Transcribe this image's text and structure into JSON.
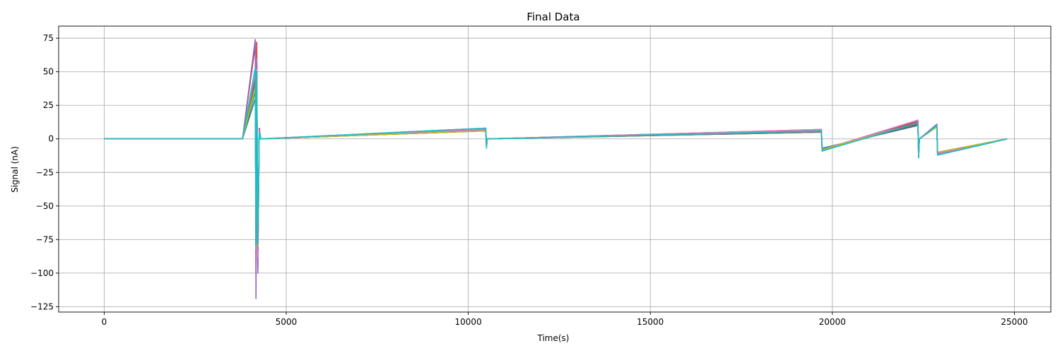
{
  "chart_data": {
    "type": "line",
    "title": "Final Data",
    "xlabel": "Time(s)",
    "ylabel": "Signal (nA)",
    "xlim": [
      -1250,
      26000
    ],
    "ylim": [
      -129,
      84
    ],
    "xticks": [
      0,
      5000,
      10000,
      15000,
      20000,
      25000
    ],
    "yticks": [
      75,
      50,
      25,
      0,
      -25,
      -50,
      -75,
      -100,
      -125
    ],
    "grid": true,
    "legend": "none",
    "colors": [
      "#1f77b4",
      "#ff7f0e",
      "#2ca02c",
      "#d62728",
      "#9467bd",
      "#8c564b",
      "#e377c2",
      "#7f7f7f",
      "#bcbd22",
      "#17becf"
    ],
    "series": [
      {
        "color": "#1f77b4",
        "x": [
          0,
          3800,
          4150,
          4170,
          4190,
          4220,
          4260,
          4300,
          10480,
          10500,
          10520,
          19700,
          19720,
          22350,
          22370,
          22390,
          22870,
          22890,
          24800
        ],
        "y": [
          0,
          0,
          30,
          -60,
          50,
          -70,
          5,
          0,
          6,
          -6,
          0,
          5,
          -7,
          10,
          -12,
          0,
          9,
          -10,
          0
        ]
      },
      {
        "color": "#ff7f0e",
        "x": [
          0,
          3800,
          4150,
          4170,
          4190,
          4220,
          4260,
          4300,
          10480,
          10500,
          10520,
          19700,
          19720,
          22350,
          22370,
          22390,
          22870,
          22890,
          24800
        ],
        "y": [
          0,
          0,
          40,
          -75,
          55,
          -80,
          6,
          0,
          7,
          -5,
          0,
          6,
          -8,
          11,
          -13,
          0,
          10,
          -11,
          0
        ]
      },
      {
        "color": "#2ca02c",
        "x": [
          0,
          3800,
          4150,
          4170,
          4190,
          4220,
          4260,
          4300,
          10480,
          10500,
          10520,
          19700,
          19720,
          22350,
          22370,
          22390,
          22870,
          22890,
          24800
        ],
        "y": [
          0,
          0,
          35,
          -70,
          48,
          -78,
          5,
          0,
          6,
          -6,
          0,
          5,
          -8,
          12,
          -13,
          0,
          9,
          -11,
          0
        ]
      },
      {
        "color": "#d62728",
        "x": [
          0,
          3800,
          4150,
          4170,
          4190,
          4220,
          4260,
          4300,
          10480,
          10500,
          10520,
          19700,
          19720,
          22350,
          22370,
          22390,
          22870,
          22890,
          24800
        ],
        "y": [
          0,
          0,
          70,
          -99,
          72,
          -95,
          8,
          0,
          8,
          -6,
          0,
          7,
          -9,
          13,
          -14,
          0,
          10,
          -12,
          0
        ]
      },
      {
        "color": "#9467bd",
        "x": [
          0,
          3800,
          4150,
          4170,
          4190,
          4220,
          4260,
          4300,
          10480,
          10500,
          10520,
          19700,
          19720,
          22350,
          22370,
          22390,
          22870,
          22890,
          24800
        ],
        "y": [
          0,
          0,
          74,
          -119,
          60,
          -100,
          7,
          0,
          7,
          -6,
          0,
          6,
          -9,
          14,
          -14,
          0,
          11,
          -12,
          0
        ]
      },
      {
        "color": "#8c564b",
        "x": [
          0,
          3800,
          4150,
          4170,
          4190,
          4220,
          4260,
          4300,
          10480,
          10500,
          10520,
          19700,
          19720,
          22350,
          22370,
          22390,
          22870,
          22890,
          24800
        ],
        "y": [
          0,
          0,
          45,
          -80,
          50,
          -85,
          6,
          0,
          6,
          -5,
          0,
          6,
          -8,
          11,
          -12,
          0,
          9,
          -10,
          0
        ]
      },
      {
        "color": "#e377c2",
        "x": [
          0,
          3800,
          4150,
          4170,
          4190,
          4220,
          4260,
          4300,
          10480,
          10500,
          10520,
          19700,
          19720,
          22350,
          22370,
          22390,
          22870,
          22890,
          24800
        ],
        "y": [
          0,
          0,
          50,
          -82,
          52,
          -88,
          6,
          0,
          7,
          -6,
          0,
          7,
          -8,
          14,
          -13,
          0,
          10,
          -11,
          0
        ]
      },
      {
        "color": "#7f7f7f",
        "x": [
          0,
          3800,
          4150,
          4170,
          4190,
          4220,
          4260,
          4300,
          10480,
          10500,
          10520,
          19700,
          19720,
          22350,
          22370,
          22390,
          22870,
          22890,
          24800
        ],
        "y": [
          0,
          0,
          42,
          -78,
          50,
          -82,
          5,
          0,
          6,
          -5,
          0,
          5,
          -8,
          12,
          -12,
          0,
          9,
          -10,
          0
        ]
      },
      {
        "color": "#bcbd22",
        "x": [
          0,
          3800,
          4150,
          4170,
          4190,
          4220,
          4260,
          4300,
          10480,
          10500,
          10520,
          19700,
          19720,
          22350,
          22370,
          22390,
          22870,
          22890,
          24800
        ],
        "y": [
          0,
          0,
          38,
          -72,
          49,
          -80,
          5,
          0,
          6,
          -5,
          0,
          6,
          -8,
          12,
          -12,
          0,
          9,
          -10,
          0
        ]
      },
      {
        "color": "#17becf",
        "x": [
          0,
          3800,
          4150,
          4170,
          4190,
          4220,
          4260,
          4300,
          10480,
          10500,
          10520,
          19700,
          19720,
          22350,
          22370,
          22390,
          22870,
          22890,
          24800
        ],
        "y": [
          0,
          0,
          53,
          -80,
          50,
          -78,
          5,
          0,
          8,
          -7,
          0,
          6,
          -9,
          12,
          -14,
          0,
          10,
          -12,
          0
        ]
      }
    ]
  }
}
